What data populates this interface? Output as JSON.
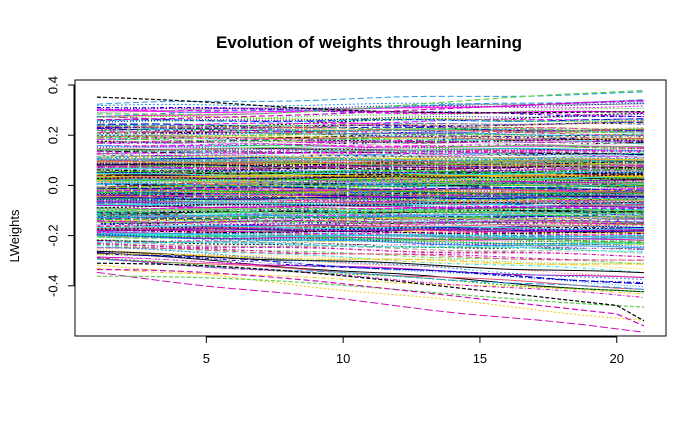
{
  "chart_data": {
    "type": "line",
    "title": "Evolution of weights through learning",
    "xlabel": "",
    "ylabel": "LWeights",
    "xlim": [
      0.2,
      21.8
    ],
    "ylim": [
      -0.6,
      0.42
    ],
    "x_ticks": [
      5,
      10,
      15,
      20
    ],
    "y_ticks": [
      0.4,
      0.2,
      0.0,
      -0.2,
      -0.4
    ],
    "x_tick_labels": [
      "5",
      "10",
      "15",
      "20"
    ],
    "y_tick_labels": [
      "0.4",
      "0.2",
      "0.0",
      "-0.2",
      "-0.4"
    ],
    "x": [
      1,
      2,
      3,
      4,
      5,
      6,
      7,
      8,
      9,
      10,
      11,
      12,
      13,
      14,
      15,
      16,
      17,
      18,
      19,
      20,
      21
    ],
    "grid": false,
    "legend": "none",
    "palette": [
      "#000000",
      "#DF536B",
      "#61D04F",
      "#2297E6",
      "#28E2E5",
      "#CD0BBC",
      "#F5C710",
      "#9E9E9E",
      "#0000CC",
      "#FF00FF",
      "#00CC00",
      "#FFFFFF"
    ],
    "highlighted_series": [
      {
        "name": "",
        "color": "#61D04F",
        "values": [
          0.285,
          0.285,
          0.284,
          0.283,
          0.283,
          0.284,
          0.286,
          0.29,
          0.295,
          0.302,
          0.31,
          0.318,
          0.326,
          0.334,
          0.342,
          0.35,
          0.357,
          0.363,
          0.368,
          0.373,
          0.378
        ]
      },
      {
        "name": "",
        "color": "#000000",
        "values": [
          0.352,
          0.348,
          0.343,
          0.338,
          0.332,
          0.325,
          0.318,
          0.311,
          0.305,
          0.3,
          0.296,
          0.293,
          0.291,
          0.29,
          0.289,
          0.289,
          0.29,
          0.291,
          0.292,
          0.293,
          0.294
        ]
      },
      {
        "name": "",
        "color": "#CD0BBC",
        "values": [
          0.262,
          0.263,
          0.265,
          0.267,
          0.27,
          0.273,
          0.276,
          0.279,
          0.283,
          0.287,
          0.292,
          0.297,
          0.302,
          0.307,
          0.312,
          0.317,
          0.322,
          0.326,
          0.33,
          0.334,
          0.337
        ]
      },
      {
        "name": "",
        "color": "#61D04F",
        "values": [
          -0.362,
          -0.362,
          -0.363,
          -0.365,
          -0.368,
          -0.372,
          -0.377,
          -0.383,
          -0.39,
          -0.398,
          -0.406,
          -0.415,
          -0.424,
          -0.433,
          -0.442,
          -0.45,
          -0.458,
          -0.466,
          -0.473,
          -0.479,
          -0.485
        ]
      },
      {
        "name": "",
        "color": "#CD0BBC",
        "values": [
          -0.335,
          -0.336,
          -0.338,
          -0.342,
          -0.347,
          -0.354,
          -0.362,
          -0.371,
          -0.381,
          -0.392,
          -0.404,
          -0.416,
          -0.428,
          -0.44,
          -0.452,
          -0.464,
          -0.476,
          -0.488,
          -0.5,
          -0.512,
          -0.56
        ]
      },
      {
        "name": "",
        "color": "#000000",
        "values": [
          -0.31,
          -0.311,
          -0.313,
          -0.316,
          -0.32,
          -0.326,
          -0.333,
          -0.341,
          -0.35,
          -0.36,
          -0.371,
          -0.382,
          -0.394,
          -0.406,
          -0.418,
          -0.43,
          -0.442,
          -0.454,
          -0.466,
          -0.478,
          -0.54
        ]
      }
    ]
  }
}
